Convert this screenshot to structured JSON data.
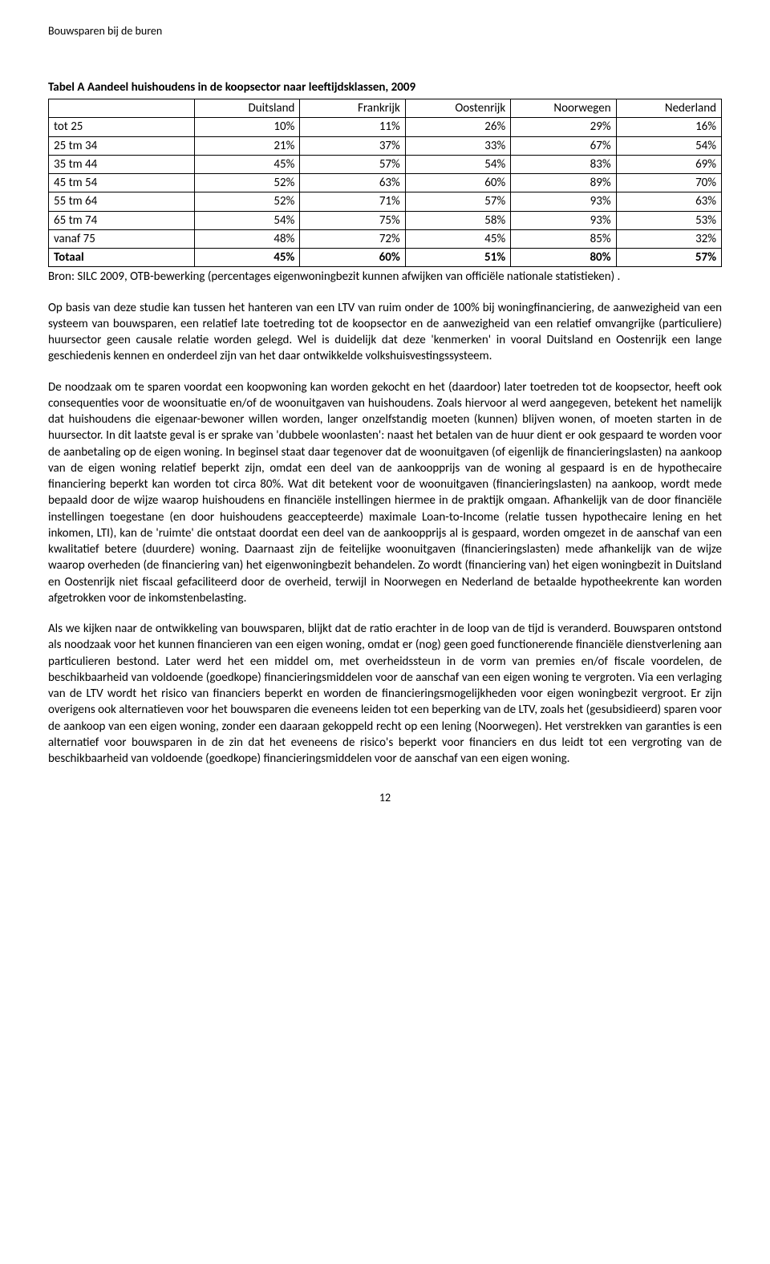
{
  "header": {
    "title": "Bouwsparen bij de buren"
  },
  "table": {
    "title": "Tabel A Aandeel huishoudens in de koopsector naar leeftijdsklassen, 2009",
    "columns": [
      "",
      "Duitsland",
      "Frankrijk",
      "Oostenrijk",
      "Noorwegen",
      "Nederland"
    ],
    "rows": [
      {
        "label": "tot 25",
        "cells": [
          "10%",
          "11%",
          "26%",
          "29%",
          "16%"
        ]
      },
      {
        "label": "25 tm 34",
        "cells": [
          "21%",
          "37%",
          "33%",
          "67%",
          "54%"
        ]
      },
      {
        "label": "35 tm 44",
        "cells": [
          "45%",
          "57%",
          "54%",
          "83%",
          "69%"
        ]
      },
      {
        "label": "45 tm 54",
        "cells": [
          "52%",
          "63%",
          "60%",
          "89%",
          "70%"
        ]
      },
      {
        "label": "55 tm 64",
        "cells": [
          "52%",
          "71%",
          "57%",
          "93%",
          "63%"
        ]
      },
      {
        "label": "65 tm 74",
        "cells": [
          "54%",
          "75%",
          "58%",
          "93%",
          "53%"
        ]
      },
      {
        "label": "vanaf 75",
        "cells": [
          "48%",
          "72%",
          "45%",
          "85%",
          "32%"
        ]
      }
    ],
    "total": {
      "label": "Totaal",
      "cells": [
        "45%",
        "60%",
        "51%",
        "80%",
        "57%"
      ]
    },
    "source": "Bron: SILC 2009, OTB-bewerking (percentages eigenwoningbezit kunnen afwijken van officiële nationale statistieken) ."
  },
  "paragraphs": {
    "p1": "Op basis van deze studie kan tussen het hanteren van een LTV van ruim onder de 100% bij woningfinanciering, de aanwezigheid van een systeem van bouwsparen, een relatief late toetreding tot de koopsector en de aanwezigheid van een relatief omvangrijke (particuliere) huursector geen causale relatie worden gelegd.  Wel is duidelijk dat deze 'kenmerken' in vooral Duitsland en Oostenrijk een lange geschiedenis kennen en onderdeel zijn van het daar ontwikkelde volkshuisvestingssysteem.",
    "p2": "De noodzaak om te sparen voordat een koopwoning kan worden gekocht en het (daardoor) later toetreden tot de koopsector, heeft ook consequenties voor de woonsituatie en/of de woonuitgaven van huishoudens. Zoals hiervoor al werd aangegeven, betekent het namelijk dat huishoudens die eigenaar-bewoner willen worden, langer onzelfstandig moeten (kunnen) blijven wonen, of moeten starten in de huursector. In dit laatste geval is er sprake van 'dubbele woonlasten': naast het betalen van de huur dient er ook gespaard te worden voor de aanbetaling op de eigen woning. In beginsel staat daar tegenover dat de woonuitgaven (of eigenlijk de financieringslasten) na aankoop van de eigen woning relatief beperkt zijn, omdat een deel van de aankoopprijs van de woning al gespaard is en de hypothecaire financiering beperkt kan worden tot circa 80%. Wat dit betekent voor de woonuitgaven (financieringslasten) na aankoop, wordt mede bepaald door de wijze waarop huishoudens en financiële instellingen hiermee in de praktijk omgaan. Afhankelijk van de door financiële instellingen toegestane (en door huishoudens geaccepteerde) maximale Loan-to-Income (relatie tussen hypothecaire lening en het inkomen, LTI), kan de 'ruimte' die ontstaat doordat een deel van de aankoopprijs al is gespaard, worden omgezet in de aanschaf van een kwalitatief betere (duurdere) woning. Daarnaast zijn de feitelijke woonuitgaven (financieringslasten) mede afhankelijk van de wijze waarop overheden (de financiering van) het eigenwoningbezit behandelen. Zo wordt (financiering van) het eigen woningbezit in Duitsland en Oostenrijk niet fiscaal gefaciliteerd door de overheid, terwijl in Noorwegen en Nederland de betaalde hypotheekrente kan worden afgetrokken voor de inkomstenbelasting.",
    "p3": "Als we kijken naar de ontwikkeling van bouwsparen, blijkt dat de ratio erachter in de loop van de tijd is veranderd. Bouwsparen ontstond als noodzaak voor het kunnen financieren van een eigen woning, omdat er (nog) geen goed functionerende financiële dienstverlening aan particulieren bestond. Later werd het een middel om, met overheidssteun in de vorm van premies en/of fiscale voordelen,  de beschikbaarheid van voldoende (goedkope) financieringsmiddelen voor de aanschaf van een eigen woning te vergroten. Via een verlaging van de LTV wordt het risico van financiers beperkt en worden de financieringsmogelijkheden voor eigen woningbezit vergroot. Er zijn overigens ook alternatieven voor het bouwsparen die eveneens leiden tot een beperking van de LTV, zoals het (gesubsidieerd) sparen voor de aankoop van een eigen woning, zonder een daaraan gekoppeld recht op een lening (Noorwegen).  Het verstrekken van garanties is een alternatief voor bouwsparen in de zin dat het eveneens de risico's beperkt voor financiers en dus leidt tot een vergroting van de beschikbaarheid van voldoende (goedkope) financieringsmiddelen voor de aanschaf van een eigen woning."
  },
  "page": {
    "number": "12"
  }
}
